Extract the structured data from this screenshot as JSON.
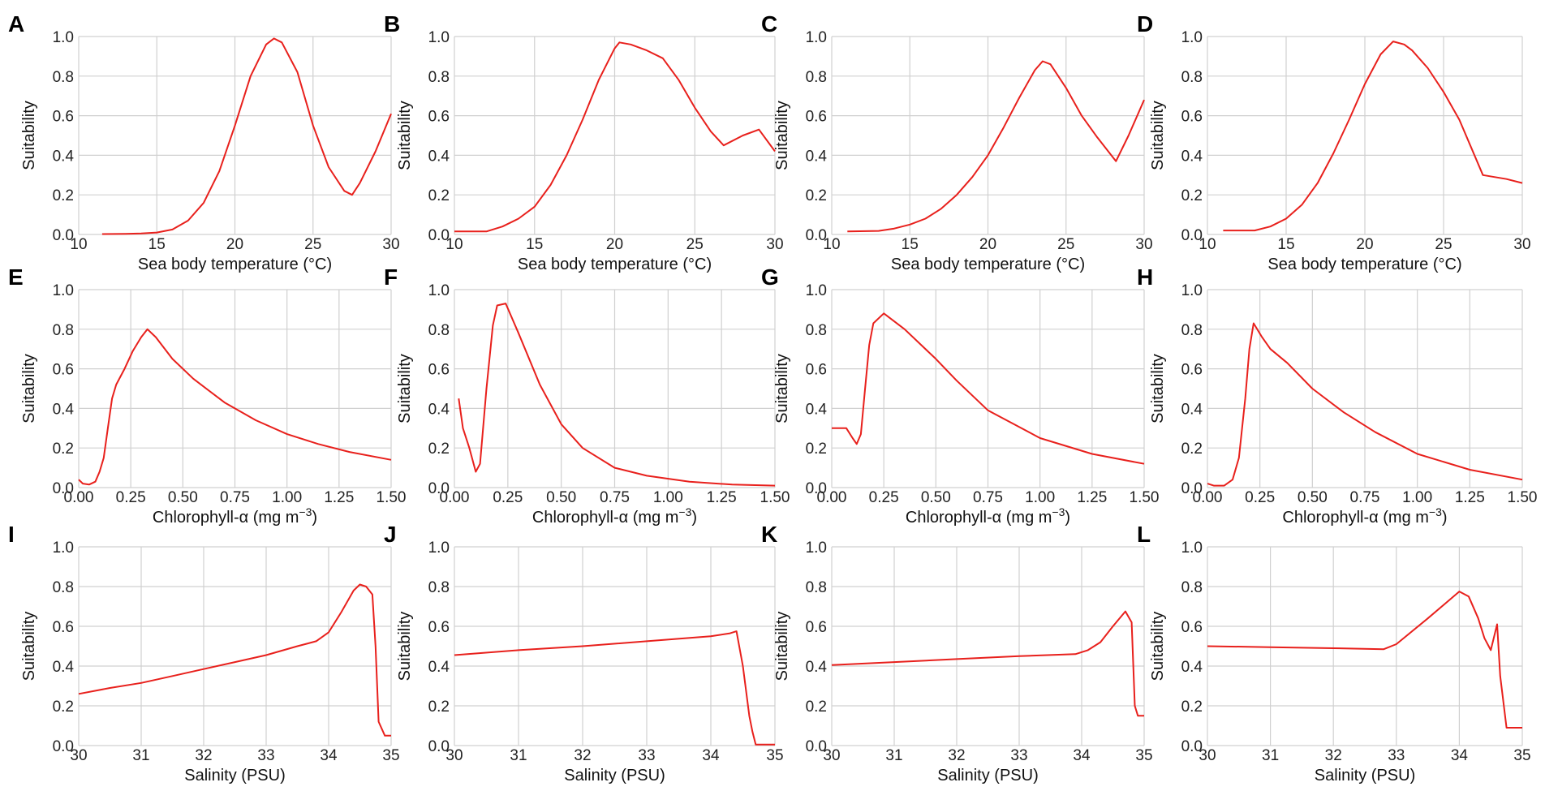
{
  "colors": {
    "series": "#e8201c",
    "grid": "#d0d0d0",
    "text": "#111111"
  },
  "chart_data": [
    {
      "panel": "A",
      "type": "line",
      "title": "",
      "xlabel": "Sea body temperature (°C)",
      "ylabel": "Suitability",
      "xlim": [
        10,
        30
      ],
      "ylim": [
        0,
        1
      ],
      "xticks": [
        10,
        15,
        20,
        25,
        30
      ],
      "xtick_labels": [
        "10",
        "15",
        "20",
        "25",
        "30"
      ],
      "yticks": [
        0,
        0.2,
        0.4,
        0.6,
        0.8,
        1.0
      ],
      "ytick_labels": [
        "0.0",
        "0.2",
        "0.4",
        "0.6",
        "0.8",
        "1.0"
      ],
      "series": [
        {
          "name": "Suitability",
          "x": [
            11.5,
            13,
            14,
            15,
            16,
            17,
            18,
            19,
            20,
            21,
            22,
            22.5,
            23,
            24,
            25,
            26,
            27,
            27.5,
            28,
            29,
            30
          ],
          "y": [
            0.002,
            0.003,
            0.005,
            0.01,
            0.025,
            0.07,
            0.16,
            0.32,
            0.55,
            0.8,
            0.96,
            0.99,
            0.97,
            0.82,
            0.55,
            0.34,
            0.22,
            0.2,
            0.26,
            0.42,
            0.61
          ]
        }
      ]
    },
    {
      "panel": "B",
      "type": "line",
      "title": "",
      "xlabel": "Sea body temperature (°C)",
      "ylabel": "Suitability",
      "xlim": [
        10,
        30
      ],
      "ylim": [
        0,
        1
      ],
      "xticks": [
        10,
        15,
        20,
        25,
        30
      ],
      "xtick_labels": [
        "10",
        "15",
        "20",
        "25",
        "30"
      ],
      "yticks": [
        0,
        0.2,
        0.4,
        0.6,
        0.8,
        1.0
      ],
      "ytick_labels": [
        "0.0",
        "0.2",
        "0.4",
        "0.6",
        "0.8",
        "1.0"
      ],
      "series": [
        {
          "name": "Suitability",
          "x": [
            10,
            12,
            13,
            14,
            15,
            16,
            17,
            18,
            19,
            20,
            20.3,
            21,
            22,
            23,
            24,
            25,
            26,
            26.8,
            28,
            29,
            30
          ],
          "y": [
            0.015,
            0.015,
            0.04,
            0.08,
            0.14,
            0.25,
            0.4,
            0.58,
            0.78,
            0.94,
            0.97,
            0.96,
            0.93,
            0.89,
            0.78,
            0.64,
            0.52,
            0.45,
            0.5,
            0.53,
            0.42
          ]
        }
      ]
    },
    {
      "panel": "C",
      "type": "line",
      "title": "",
      "xlabel": "Sea body temperature (°C)",
      "ylabel": "Suitability",
      "xlim": [
        10,
        30
      ],
      "ylim": [
        0,
        1
      ],
      "xticks": [
        10,
        15,
        20,
        25,
        30
      ],
      "xtick_labels": [
        "10",
        "15",
        "20",
        "25",
        "30"
      ],
      "yticks": [
        0,
        0.2,
        0.4,
        0.6,
        0.8,
        1.0
      ],
      "ytick_labels": [
        "0.0",
        "0.2",
        "0.4",
        "0.6",
        "0.8",
        "1.0"
      ],
      "series": [
        {
          "name": "Suitability",
          "x": [
            11,
            13,
            14,
            15,
            16,
            17,
            18,
            19,
            20,
            21,
            22,
            23,
            23.5,
            24,
            25,
            26,
            27,
            28.2,
            29,
            30
          ],
          "y": [
            0.015,
            0.018,
            0.03,
            0.05,
            0.08,
            0.13,
            0.2,
            0.29,
            0.4,
            0.54,
            0.69,
            0.83,
            0.875,
            0.86,
            0.74,
            0.6,
            0.49,
            0.37,
            0.5,
            0.68
          ]
        }
      ]
    },
    {
      "panel": "D",
      "type": "line",
      "title": "",
      "xlabel": "Sea body temperature (°C)",
      "ylabel": "Suitability",
      "xlim": [
        10,
        30
      ],
      "ylim": [
        0,
        1
      ],
      "xticks": [
        10,
        15,
        20,
        25,
        30
      ],
      "xtick_labels": [
        "10",
        "15",
        "20",
        "25",
        "30"
      ],
      "yticks": [
        0,
        0.2,
        0.4,
        0.6,
        0.8,
        1.0
      ],
      "ytick_labels": [
        "0.0",
        "0.2",
        "0.4",
        "0.6",
        "0.8",
        "1.0"
      ],
      "series": [
        {
          "name": "Suitability",
          "x": [
            11,
            13,
            14,
            15,
            16,
            17,
            18,
            19,
            20,
            21,
            21.8,
            22.5,
            23,
            24,
            25,
            26,
            27.5,
            29,
            30
          ],
          "y": [
            0.02,
            0.02,
            0.04,
            0.08,
            0.15,
            0.26,
            0.41,
            0.58,
            0.76,
            0.91,
            0.975,
            0.96,
            0.93,
            0.84,
            0.72,
            0.58,
            0.3,
            0.28,
            0.26
          ]
        }
      ]
    },
    {
      "panel": "E",
      "type": "line",
      "title": "",
      "xlabel": "Chlorophyll-α (mg m",
      "xlabel_sup": "−3",
      "xlabel_suffix": ")",
      "ylabel": "Suitability",
      "xlim": [
        0,
        1.5
      ],
      "ylim": [
        0,
        1
      ],
      "xticks": [
        0,
        0.25,
        0.5,
        0.75,
        1.0,
        1.25,
        1.5
      ],
      "xtick_labels": [
        "0.00",
        "0.25",
        "0.50",
        "0.75",
        "1.00",
        "1.25",
        "1.50"
      ],
      "yticks": [
        0,
        0.2,
        0.4,
        0.6,
        0.8,
        1.0
      ],
      "ytick_labels": [
        "0.0",
        "0.2",
        "0.4",
        "0.6",
        "0.8",
        "1.0"
      ],
      "series": [
        {
          "name": "Suitability",
          "x": [
            0,
            0.02,
            0.05,
            0.08,
            0.1,
            0.12,
            0.14,
            0.16,
            0.18,
            0.22,
            0.26,
            0.3,
            0.33,
            0.37,
            0.45,
            0.55,
            0.7,
            0.85,
            1.0,
            1.15,
            1.3,
            1.5
          ],
          "y": [
            0.04,
            0.02,
            0.015,
            0.03,
            0.08,
            0.15,
            0.3,
            0.45,
            0.52,
            0.6,
            0.69,
            0.76,
            0.8,
            0.76,
            0.65,
            0.55,
            0.43,
            0.34,
            0.27,
            0.22,
            0.18,
            0.14
          ]
        }
      ]
    },
    {
      "panel": "F",
      "type": "line",
      "title": "",
      "xlabel": "Chlorophyll-α (mg m",
      "xlabel_sup": "−3",
      "xlabel_suffix": ")",
      "ylabel": "Suitability",
      "xlim": [
        0,
        1.5
      ],
      "ylim": [
        0,
        1
      ],
      "xticks": [
        0,
        0.25,
        0.5,
        0.75,
        1.0,
        1.25,
        1.5
      ],
      "xtick_labels": [
        "0.00",
        "0.25",
        "0.50",
        "0.75",
        "1.00",
        "1.25",
        "1.50"
      ],
      "yticks": [
        0,
        0.2,
        0.4,
        0.6,
        0.8,
        1.0
      ],
      "ytick_labels": [
        "0.0",
        "0.2",
        "0.4",
        "0.6",
        "0.8",
        "1.0"
      ],
      "series": [
        {
          "name": "Suitability",
          "x": [
            0.02,
            0.04,
            0.07,
            0.1,
            0.12,
            0.15,
            0.18,
            0.2,
            0.24,
            0.3,
            0.4,
            0.5,
            0.6,
            0.75,
            0.9,
            1.1,
            1.3,
            1.5
          ],
          "y": [
            0.45,
            0.3,
            0.2,
            0.08,
            0.12,
            0.5,
            0.82,
            0.92,
            0.93,
            0.78,
            0.52,
            0.32,
            0.2,
            0.1,
            0.06,
            0.03,
            0.015,
            0.01
          ]
        }
      ]
    },
    {
      "panel": "G",
      "type": "line",
      "title": "",
      "xlabel": "Chlorophyll-α (mg m",
      "xlabel_sup": "−3",
      "xlabel_suffix": ")",
      "ylabel": "Suitability",
      "xlim": [
        0,
        1.5
      ],
      "ylim": [
        0,
        1
      ],
      "xticks": [
        0,
        0.25,
        0.5,
        0.75,
        1.0,
        1.25,
        1.5
      ],
      "xtick_labels": [
        "0.00",
        "0.25",
        "0.50",
        "0.75",
        "1.00",
        "1.25",
        "1.50"
      ],
      "yticks": [
        0,
        0.2,
        0.4,
        0.6,
        0.8,
        1.0
      ],
      "ytick_labels": [
        "0.0",
        "0.2",
        "0.4",
        "0.6",
        "0.8",
        "1.0"
      ],
      "series": [
        {
          "name": "Suitability",
          "x": [
            0,
            0.07,
            0.1,
            0.12,
            0.14,
            0.16,
            0.18,
            0.2,
            0.25,
            0.35,
            0.5,
            0.6,
            0.75,
            1.0,
            1.25,
            1.5
          ],
          "y": [
            0.3,
            0.3,
            0.25,
            0.22,
            0.27,
            0.5,
            0.72,
            0.83,
            0.88,
            0.8,
            0.65,
            0.54,
            0.39,
            0.25,
            0.17,
            0.12
          ]
        }
      ]
    },
    {
      "panel": "H",
      "type": "line",
      "title": "",
      "xlabel": "Chlorophyll-α (mg m",
      "xlabel_sup": "−3",
      "xlabel_suffix": ")",
      "ylabel": "Suitability",
      "xlim": [
        0,
        1.5
      ],
      "ylim": [
        0,
        1
      ],
      "xticks": [
        0,
        0.25,
        0.5,
        0.75,
        1.0,
        1.25,
        1.5
      ],
      "xtick_labels": [
        "0.00",
        "0.25",
        "0.50",
        "0.75",
        "1.00",
        "1.25",
        "1.50"
      ],
      "yticks": [
        0,
        0.2,
        0.4,
        0.6,
        0.8,
        1.0
      ],
      "ytick_labels": [
        "0.0",
        "0.2",
        "0.4",
        "0.6",
        "0.8",
        "1.0"
      ],
      "series": [
        {
          "name": "Suitability",
          "x": [
            0,
            0.03,
            0.08,
            0.12,
            0.15,
            0.18,
            0.2,
            0.22,
            0.26,
            0.3,
            0.38,
            0.5,
            0.65,
            0.8,
            1.0,
            1.25,
            1.5
          ],
          "y": [
            0.02,
            0.01,
            0.01,
            0.04,
            0.15,
            0.45,
            0.7,
            0.83,
            0.76,
            0.7,
            0.63,
            0.5,
            0.38,
            0.28,
            0.17,
            0.09,
            0.04
          ]
        }
      ]
    },
    {
      "panel": "I",
      "type": "line",
      "title": "",
      "xlabel": "Salinity (PSU)",
      "ylabel": "Suitability",
      "xlim": [
        30,
        35
      ],
      "ylim": [
        0,
        1
      ],
      "xticks": [
        30,
        31,
        32,
        33,
        34,
        35
      ],
      "xtick_labels": [
        "30",
        "31",
        "32",
        "33",
        "34",
        "35"
      ],
      "yticks": [
        0,
        0.2,
        0.4,
        0.6,
        0.8,
        1.0
      ],
      "ytick_labels": [
        "0.0",
        "0.2",
        "0.4",
        "0.6",
        "0.8",
        "1.0"
      ],
      "series": [
        {
          "name": "Suitability",
          "x": [
            30,
            30.5,
            31,
            31.5,
            32,
            32.5,
            33,
            33.5,
            33.8,
            34,
            34.2,
            34.4,
            34.5,
            34.6,
            34.7,
            34.75,
            34.8,
            34.9,
            35
          ],
          "y": [
            0.26,
            0.29,
            0.315,
            0.35,
            0.385,
            0.42,
            0.455,
            0.5,
            0.525,
            0.57,
            0.67,
            0.78,
            0.81,
            0.8,
            0.76,
            0.5,
            0.12,
            0.05,
            0.05
          ]
        }
      ]
    },
    {
      "panel": "J",
      "type": "line",
      "title": "",
      "xlabel": "Salinity (PSU)",
      "ylabel": "Suitability",
      "xlim": [
        30,
        35
      ],
      "ylim": [
        0,
        1
      ],
      "xticks": [
        30,
        31,
        32,
        33,
        34,
        35
      ],
      "xtick_labels": [
        "30",
        "31",
        "32",
        "33",
        "34",
        "35"
      ],
      "yticks": [
        0,
        0.2,
        0.4,
        0.6,
        0.8,
        1.0
      ],
      "ytick_labels": [
        "0.0",
        "0.2",
        "0.4",
        "0.6",
        "0.8",
        "1.0"
      ],
      "series": [
        {
          "name": "Suitability",
          "x": [
            30,
            31,
            32,
            33,
            34,
            34.3,
            34.4,
            34.5,
            34.6,
            34.65,
            34.7,
            35
          ],
          "y": [
            0.455,
            0.48,
            0.5,
            0.525,
            0.55,
            0.565,
            0.575,
            0.4,
            0.15,
            0.07,
            0.005,
            0.005
          ]
        }
      ]
    },
    {
      "panel": "K",
      "type": "line",
      "title": "",
      "xlabel": "Salinity (PSU)",
      "ylabel": "Suitability",
      "xlim": [
        30,
        35
      ],
      "ylim": [
        0,
        1
      ],
      "xticks": [
        30,
        31,
        32,
        33,
        34,
        35
      ],
      "xtick_labels": [
        "30",
        "31",
        "32",
        "33",
        "34",
        "35"
      ],
      "yticks": [
        0,
        0.2,
        0.4,
        0.6,
        0.8,
        1.0
      ],
      "ytick_labels": [
        "0.0",
        "0.2",
        "0.4",
        "0.6",
        "0.8",
        "1.0"
      ],
      "series": [
        {
          "name": "Suitability",
          "x": [
            30,
            31,
            32,
            33,
            33.9,
            34.1,
            34.3,
            34.5,
            34.7,
            34.8,
            34.85,
            34.9,
            35
          ],
          "y": [
            0.405,
            0.42,
            0.435,
            0.45,
            0.46,
            0.48,
            0.52,
            0.6,
            0.675,
            0.62,
            0.2,
            0.15,
            0.15
          ]
        }
      ]
    },
    {
      "panel": "L",
      "type": "line",
      "title": "",
      "xlabel": "Salinity (PSU)",
      "ylabel": "Suitability",
      "xlim": [
        30,
        35
      ],
      "ylim": [
        0,
        1
      ],
      "xticks": [
        30,
        31,
        32,
        33,
        34,
        35
      ],
      "xtick_labels": [
        "30",
        "31",
        "32",
        "33",
        "34",
        "35"
      ],
      "yticks": [
        0,
        0.2,
        0.4,
        0.6,
        0.8,
        1.0
      ],
      "ytick_labels": [
        "0.0",
        "0.2",
        "0.4",
        "0.6",
        "0.8",
        "1.0"
      ],
      "series": [
        {
          "name": "Suitability",
          "x": [
            30,
            31,
            32,
            32.8,
            33,
            33.5,
            34,
            34.15,
            34.3,
            34.4,
            34.5,
            34.6,
            34.65,
            34.75,
            34.8,
            35
          ],
          "y": [
            0.5,
            0.495,
            0.49,
            0.485,
            0.51,
            0.64,
            0.775,
            0.75,
            0.64,
            0.54,
            0.48,
            0.61,
            0.35,
            0.09,
            0.09,
            0.09
          ]
        }
      ]
    }
  ]
}
